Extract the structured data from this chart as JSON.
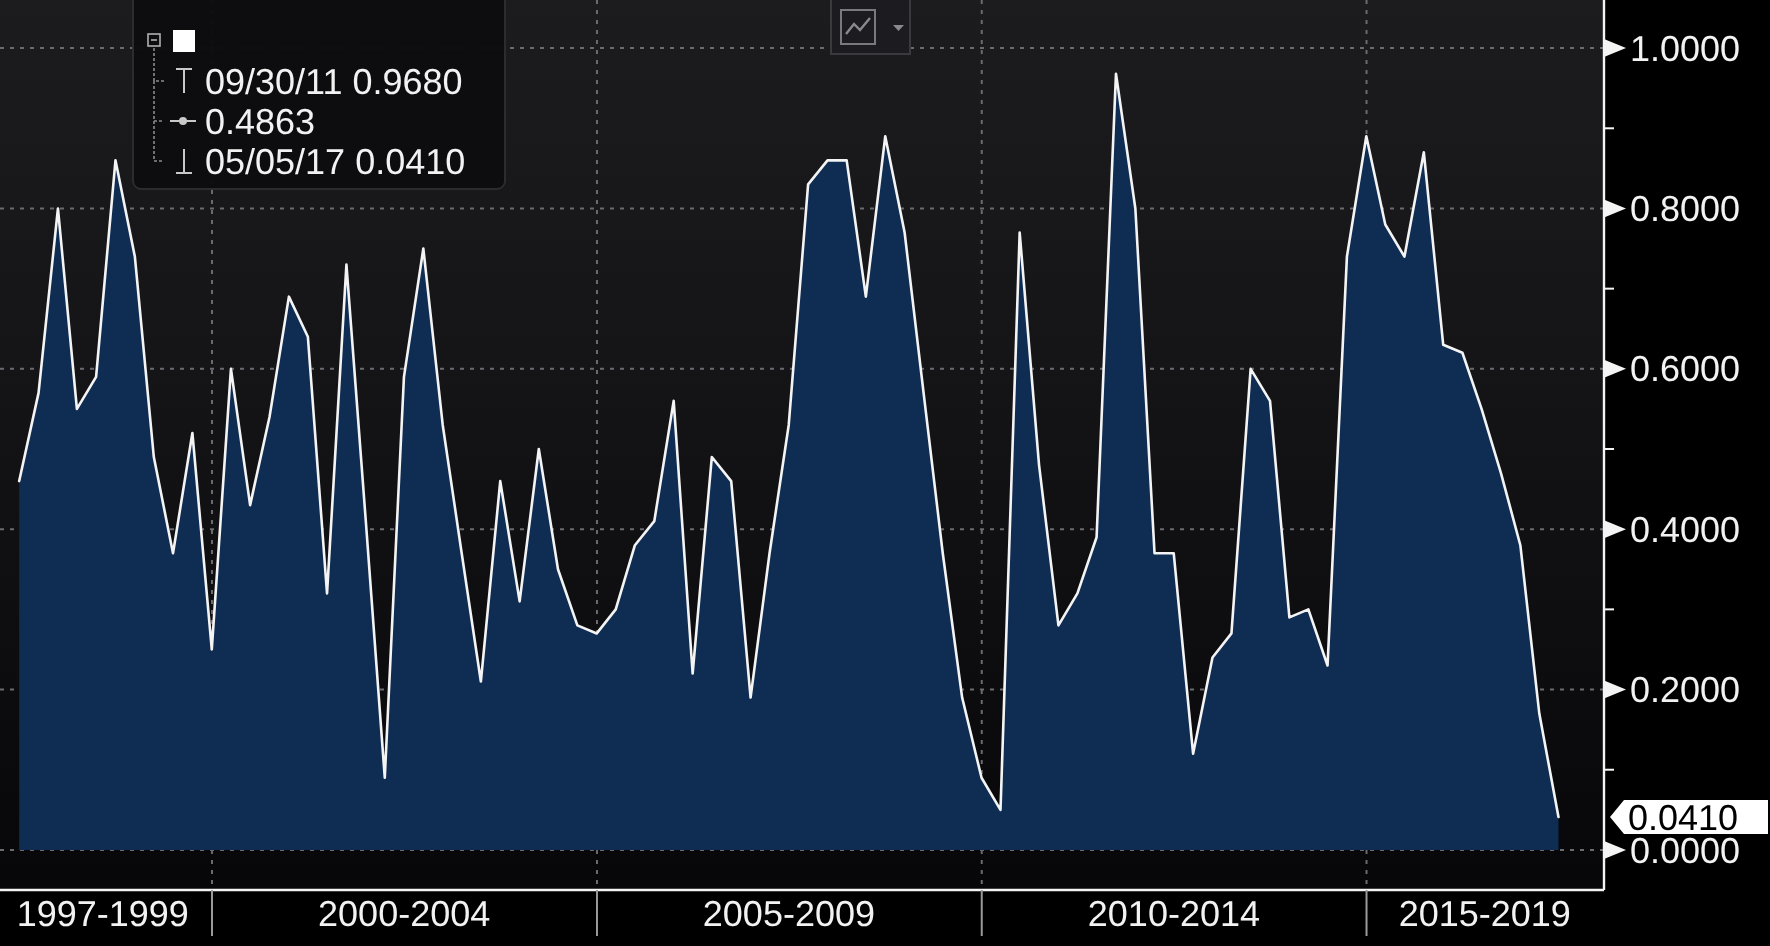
{
  "chart_data": {
    "type": "area",
    "x": [
      "1997-06-30",
      "1997-09-30",
      "1997-12-31",
      "1998-03-31",
      "1998-06-30",
      "1998-09-30",
      "1998-12-31",
      "1999-03-31",
      "1999-06-30",
      "1999-09-30",
      "1999-12-31",
      "2000-03-31",
      "2000-06-30",
      "2000-09-30",
      "2000-12-31",
      "2001-03-31",
      "2001-06-30",
      "2001-09-30",
      "2001-12-31",
      "2002-03-31",
      "2002-06-30",
      "2002-09-30",
      "2002-12-31",
      "2003-03-31",
      "2003-06-30",
      "2003-09-30",
      "2003-12-31",
      "2004-03-31",
      "2004-06-30",
      "2004-09-30",
      "2004-12-31",
      "2005-03-31",
      "2005-06-30",
      "2005-09-30",
      "2005-12-31",
      "2006-03-31",
      "2006-06-30",
      "2006-09-30",
      "2006-12-31",
      "2007-03-31",
      "2007-06-30",
      "2007-09-30",
      "2007-12-31",
      "2008-03-31",
      "2008-06-30",
      "2008-09-30",
      "2008-12-31",
      "2009-03-31",
      "2009-06-30",
      "2009-09-30",
      "2009-12-31",
      "2010-03-31",
      "2010-06-30",
      "2010-09-30",
      "2010-12-31",
      "2011-03-31",
      "2011-06-30",
      "2011-09-30",
      "2011-12-31",
      "2012-03-31",
      "2012-06-30",
      "2012-09-30",
      "2012-12-31",
      "2013-03-31",
      "2013-06-30",
      "2013-09-30",
      "2013-12-31",
      "2014-03-31",
      "2014-06-30",
      "2014-09-30",
      "2014-12-31",
      "2015-03-31",
      "2015-06-30",
      "2015-09-30",
      "2015-12-31",
      "2016-03-31",
      "2016-06-30",
      "2016-09-30",
      "2016-12-31",
      "2017-03-31",
      "2017-06-30"
    ],
    "values": [
      0.46,
      0.57,
      0.8,
      0.55,
      0.59,
      0.86,
      0.74,
      0.49,
      0.37,
      0.52,
      0.25,
      0.6,
      0.43,
      0.54,
      0.69,
      0.64,
      0.32,
      0.73,
      0.41,
      0.09,
      0.59,
      0.75,
      0.53,
      0.37,
      0.21,
      0.46,
      0.31,
      0.5,
      0.35,
      0.28,
      0.27,
      0.3,
      0.38,
      0.41,
      0.56,
      0.22,
      0.49,
      0.46,
      0.19,
      0.37,
      0.53,
      0.83,
      0.86,
      0.86,
      0.69,
      0.89,
      0.77,
      0.57,
      0.37,
      0.19,
      0.09,
      0.05,
      0.77,
      0.48,
      0.28,
      0.32,
      0.39,
      0.968,
      0.8,
      0.37,
      0.37,
      0.12,
      0.24,
      0.27,
      0.6,
      0.56,
      0.29,
      0.3,
      0.23,
      0.74,
      0.89,
      0.78,
      0.74,
      0.87,
      0.63,
      0.62,
      0.55,
      0.47,
      0.38,
      0.17,
      0.041
    ],
    "color": "#0f2c52",
    "xlim": [
      "1997-03-31",
      "2018-02-01"
    ],
    "xticks": [
      {
        "value": "1998-08",
        "label": "1997-1999"
      },
      {
        "value": "2000-01-01",
        "label": null
      },
      {
        "value": "2002-07",
        "label": "2000-2004"
      },
      {
        "value": "2005-01-01",
        "label": null
      },
      {
        "value": "2007-07",
        "label": "2005-2009"
      },
      {
        "value": "2010-01-01",
        "label": null
      },
      {
        "value": "2012-07",
        "label": "2010-2014"
      },
      {
        "value": "2015-01-01",
        "label": null
      },
      {
        "value": "2016-07-15",
        "label": "2015-2019"
      }
    ],
    "ylim": [
      -0.05,
      1.06
    ],
    "yticks": [
      {
        "value": 0,
        "label": "0.0000"
      },
      {
        "value": 0.1,
        "label": null
      },
      {
        "value": 0.2,
        "label": "0.2000"
      },
      {
        "value": 0.3,
        "label": null
      },
      {
        "value": 0.4,
        "label": "0.4000"
      },
      {
        "value": 0.5,
        "label": null
      },
      {
        "value": 0.6,
        "label": "0.6000"
      },
      {
        "value": 0.7,
        "label": null
      },
      {
        "value": 0.8,
        "label": "0.8000"
      },
      {
        "value": 0.9,
        "label": null
      },
      {
        "value": 1,
        "label": "1.0000"
      }
    ],
    "grid": true,
    "annotations": [
      "09/30/11 0.9680",
      "0.4863",
      "05/05/17 0.0410",
      {
        "text": "0.0410",
        "x": "2017-06-30",
        "y": 0.041
      }
    ]
  }
}
